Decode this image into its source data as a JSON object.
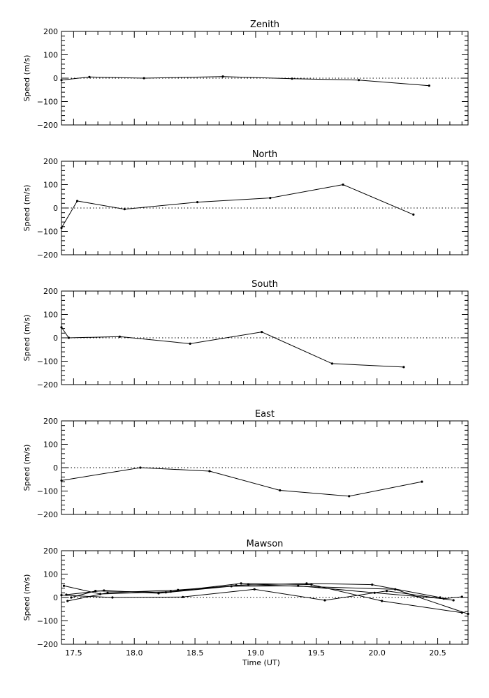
{
  "figure": {
    "xlabel": "Time (UT)",
    "x_ticks": [
      "17.5",
      "18.0",
      "18.5",
      "19.0",
      "19.5",
      "20.0",
      "20.5"
    ]
  },
  "chart_data": [
    {
      "type": "line",
      "title": "Zenith",
      "ylabel": "Speed (m/s)",
      "xlim": [
        17.4,
        20.75
      ],
      "ylim": [
        -200,
        200
      ],
      "y_ticks": [
        "200",
        "100",
        "0",
        "−100",
        "−200"
      ],
      "zero_line": true,
      "series": [
        {
          "x": [
            17.4,
            17.63,
            18.08,
            18.73,
            19.3,
            19.85,
            20.43
          ],
          "y": [
            -8,
            5,
            0,
            7,
            -2,
            -8,
            -32
          ]
        }
      ]
    },
    {
      "type": "line",
      "title": "North",
      "ylabel": "Speed (m/s)",
      "xlim": [
        17.4,
        20.75
      ],
      "ylim": [
        -200,
        200
      ],
      "y_ticks": [
        "200",
        "100",
        "0",
        "−100",
        "−200"
      ],
      "zero_line": true,
      "series": [
        {
          "x": [
            17.4,
            17.53,
            17.92,
            18.52,
            19.12,
            19.72,
            20.3
          ],
          "y": [
            -85,
            30,
            -5,
            25,
            43,
            100,
            -28
          ]
        }
      ]
    },
    {
      "type": "line",
      "title": "South",
      "ylabel": "Speed (m/s)",
      "xlim": [
        17.4,
        20.75
      ],
      "ylim": [
        -200,
        200
      ],
      "y_ticks": [
        "200",
        "100",
        "0",
        "−100",
        "−200"
      ],
      "zero_line": true,
      "series": [
        {
          "x": [
            17.4,
            17.46,
            17.88,
            18.46,
            19.05,
            19.63,
            20.22
          ],
          "y": [
            45,
            0,
            5,
            -25,
            25,
            -110,
            -125
          ]
        }
      ]
    },
    {
      "type": "line",
      "title": "East",
      "ylabel": "Speed (m/s)",
      "xlim": [
        17.4,
        20.75
      ],
      "ylim": [
        -200,
        200
      ],
      "y_ticks": [
        "200",
        "100",
        "0",
        "−100",
        "−200"
      ],
      "zero_line": true,
      "series": [
        {
          "x": [
            17.4,
            18.05,
            18.62,
            19.2,
            19.77,
            20.37
          ],
          "y": [
            -55,
            0,
            -15,
            -97,
            -122,
            -60
          ]
        }
      ]
    },
    {
      "type": "line",
      "title": "Mawson",
      "ylabel": "Speed (m/s)",
      "xlim": [
        17.4,
        20.75
      ],
      "ylim": [
        -200,
        200
      ],
      "y_ticks": [
        "200",
        "100",
        "0",
        "−100",
        "−200"
      ],
      "zero_line": true,
      "series": [
        {
          "x": [
            17.4,
            17.82,
            18.4,
            18.99,
            19.57,
            20.08,
            20.63
          ],
          "y": [
            10,
            0,
            2,
            35,
            -12,
            28,
            -12
          ]
        },
        {
          "x": [
            17.42,
            17.72,
            18.3,
            18.88,
            19.46,
            20.04,
            20.7
          ],
          "y": [
            50,
            15,
            25,
            60,
            55,
            -15,
            -65
          ]
        },
        {
          "x": [
            17.45,
            17.78,
            18.36,
            18.94,
            19.52,
            20.15,
            20.75
          ],
          "y": [
            -15,
            20,
            32,
            55,
            45,
            35,
            -70
          ]
        },
        {
          "x": [
            17.48,
            17.68,
            18.26,
            18.84,
            19.42,
            19.96,
            20.52
          ],
          "y": [
            0,
            28,
            22,
            52,
            60,
            55,
            0
          ]
        },
        {
          "x": [
            17.44,
            17.75,
            18.2,
            18.8,
            19.35,
            19.98,
            20.55,
            20.7
          ],
          "y": [
            12,
            30,
            18,
            48,
            50,
            20,
            -5,
            3
          ]
        }
      ]
    }
  ]
}
